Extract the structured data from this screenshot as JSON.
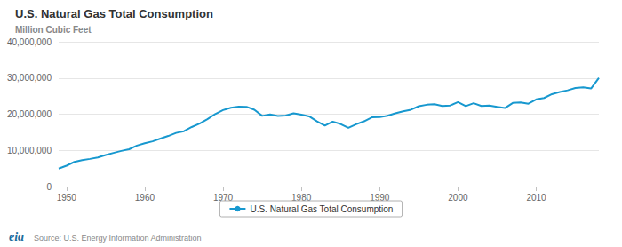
{
  "chart_data": {
    "type": "line",
    "title": "U.S. Natural Gas Total Consumption",
    "subtitle": "Million Cubic Feet",
    "source": "Source: U.S. Energy Information Administration",
    "logo": "eia",
    "x": [
      1949,
      1950,
      1951,
      1952,
      1953,
      1954,
      1955,
      1956,
      1957,
      1958,
      1959,
      1960,
      1961,
      1962,
      1963,
      1964,
      1965,
      1966,
      1967,
      1968,
      1969,
      1970,
      1971,
      1972,
      1973,
      1974,
      1975,
      1976,
      1977,
      1978,
      1979,
      1980,
      1981,
      1982,
      1983,
      1984,
      1985,
      1986,
      1987,
      1988,
      1989,
      1990,
      1991,
      1992,
      1993,
      1994,
      1995,
      1996,
      1997,
      1998,
      1999,
      2000,
      2001,
      2002,
      2003,
      2004,
      2005,
      2006,
      2007,
      2008,
      2009,
      2010,
      2011,
      2012,
      2013,
      2014,
      2015,
      2016,
      2017,
      2018
    ],
    "series": [
      {
        "name": "U.S. Natural Gas Total Consumption",
        "color": "#1798cf",
        "marker": "none",
        "line_style": "solid",
        "values": [
          4971000,
          5767000,
          6810000,
          7294000,
          7640000,
          8050000,
          8694000,
          9289000,
          9846000,
          10303000,
          11321000,
          11967000,
          12490000,
          13267000,
          13970000,
          14814000,
          15280000,
          16452000,
          17388000,
          18632000,
          20056000,
          21139000,
          21794000,
          22102000,
          22049000,
          21223000,
          19538000,
          19947000,
          19521000,
          19628000,
          20241000,
          19877000,
          19404000,
          18001000,
          16835000,
          17951000,
          17281000,
          16221000,
          17211000,
          18030000,
          19119000,
          19174000,
          19562000,
          20228000,
          20790000,
          21247000,
          22207000,
          22609000,
          22737000,
          22246000,
          22405000,
          23333000,
          22239000,
          23027000,
          22277000,
          22389000,
          22011000,
          21699000,
          23104000,
          23277000,
          22910000,
          24087000,
          24477000,
          25538000,
          26155000,
          26593000,
          27244000,
          27445000,
          27094000,
          30014000
        ]
      }
    ],
    "xlim": [
      1949,
      2018
    ],
    "xticks": [
      1950,
      1960,
      1970,
      1980,
      1990,
      2000,
      2010
    ],
    "ylim": [
      0,
      40000000
    ],
    "yticks": [
      0,
      {
        "value": 10000000,
        "label": "10,000,000"
      },
      {
        "value": 20000000,
        "label": "20,000,000"
      },
      {
        "value": 30000000,
        "label": "30,000,000"
      },
      {
        "value": 40000000,
        "label": "40,000,000"
      }
    ],
    "grid": true,
    "legend": "bottom"
  }
}
